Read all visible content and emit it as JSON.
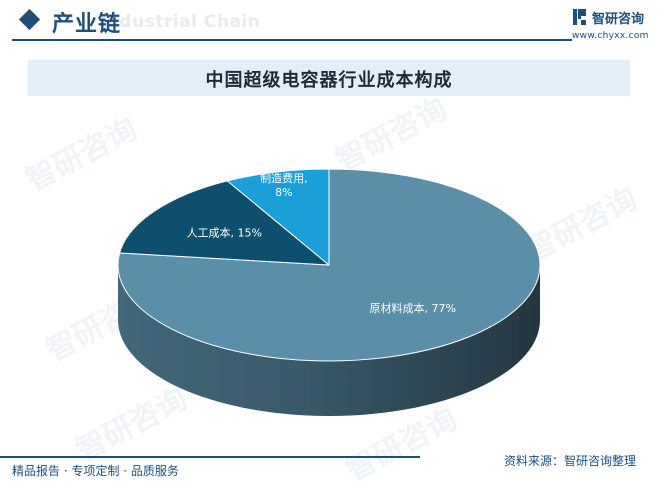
{
  "header": {
    "title": "产业链",
    "subtitle_en": "Industrial Chain"
  },
  "brand": {
    "name": "智研咨询",
    "url": "www.chyxx.com",
    "watermark_text": "智研咨询"
  },
  "chart_data": {
    "type": "pie",
    "title": "中国超级电容器行业成本构成",
    "slices": [
      {
        "label": "原材料成本",
        "value": 77,
        "value_label": "77%",
        "color": "#5b8fa9"
      },
      {
        "label": "人工成本",
        "value": 15,
        "value_label": "15%",
        "color": "#0e4f6e"
      },
      {
        "label": "制造费用",
        "value": 8,
        "value_label": "8%",
        "color": "#1b9fd8"
      }
    ],
    "legend": "none"
  },
  "footer": {
    "left": "精品报告 · 专项定制 · 品质服务",
    "source": "资料来源：智研咨询整理"
  },
  "colors": {
    "brand_blue": "#1f4e79",
    "title_band": "#e4eef6"
  }
}
